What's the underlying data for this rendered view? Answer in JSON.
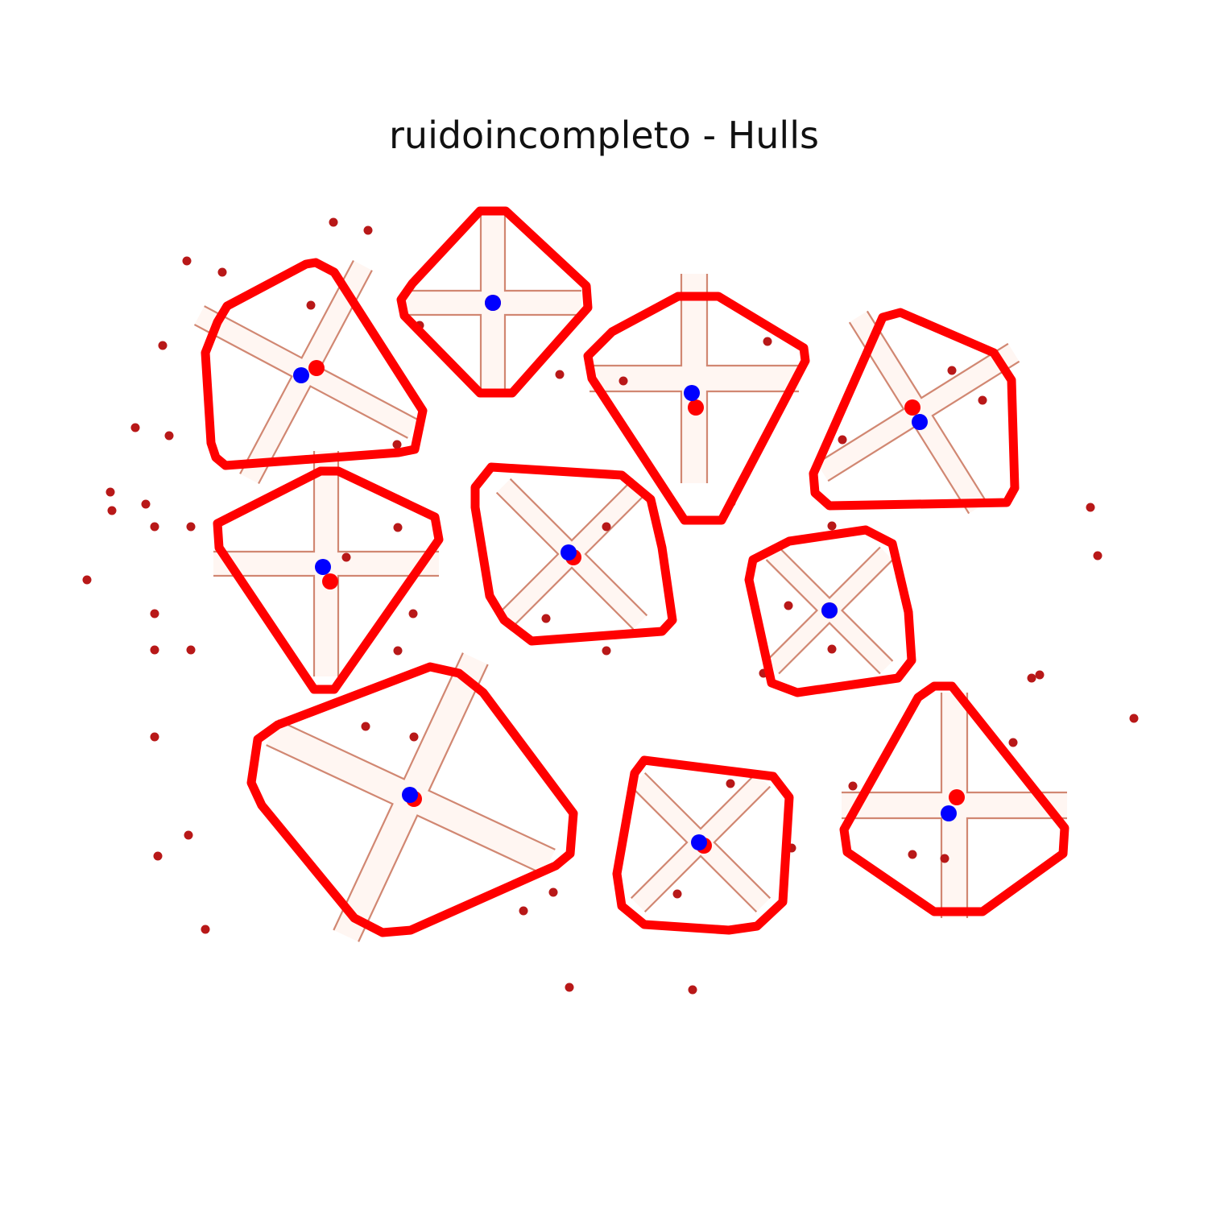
{
  "title": "ruidoincompleto - Hulls",
  "colors": {
    "hull": "#ff0000",
    "centroid_red": "#ff0000",
    "centroid_blue": "#0000ff",
    "noise": "#b81818",
    "cross_lines": "#c56a50"
  },
  "shapes": [
    {
      "id": "cross-1",
      "kind": "x-cross"
    },
    {
      "id": "cross-2",
      "kind": "plus-cross"
    },
    {
      "id": "cross-3",
      "kind": "plus-cross"
    },
    {
      "id": "cross-4",
      "kind": "x-cross"
    },
    {
      "id": "cross-5",
      "kind": "plus-cross"
    },
    {
      "id": "cross-6",
      "kind": "x-cross"
    },
    {
      "id": "cross-7",
      "kind": "x-cross"
    },
    {
      "id": "cross-8",
      "kind": "x-cross"
    },
    {
      "id": "cross-9",
      "kind": "x-cross"
    },
    {
      "id": "cross-10",
      "kind": "plus-cross"
    }
  ]
}
